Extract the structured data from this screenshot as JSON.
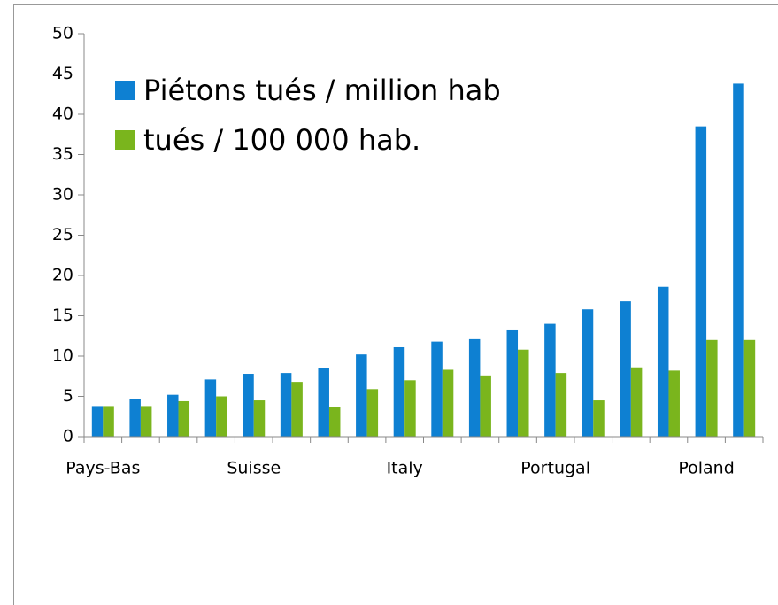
{
  "chart_data": {
    "type": "bar",
    "categories": [
      "Pays-Bas",
      null,
      null,
      null,
      "Suisse",
      null,
      null,
      null,
      "Italy",
      null,
      null,
      null,
      "Portugal",
      null,
      null,
      null,
      "Poland",
      null
    ],
    "series": [
      {
        "name": "Piétons tués / million hab",
        "color": "#0e80d2",
        "values": [
          3.8,
          4.7,
          5.2,
          7.1,
          7.8,
          7.9,
          8.5,
          10.2,
          11.1,
          11.8,
          12.1,
          13.3,
          14.0,
          15.8,
          16.8,
          18.6,
          38.5,
          43.8
        ]
      },
      {
        "name": "tués / 100 000 hab.",
        "color": "#7ab51d",
        "values": [
          3.8,
          3.8,
          4.4,
          5.0,
          4.5,
          6.8,
          3.7,
          5.9,
          7.0,
          8.3,
          7.6,
          10.8,
          7.9,
          4.5,
          8.6,
          8.2,
          12.0,
          12.0
        ]
      }
    ],
    "ylim": [
      0,
      50
    ],
    "yticks": [
      0,
      5,
      10,
      15,
      20,
      25,
      30,
      35,
      40,
      45,
      50
    ],
    "legend": "top-left"
  }
}
